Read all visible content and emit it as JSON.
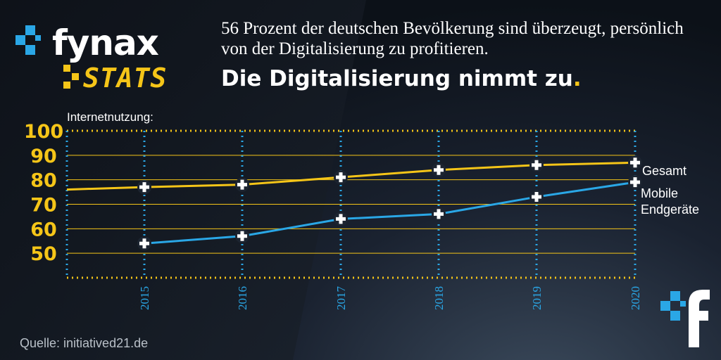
{
  "brand": {
    "logo_text": "fynax",
    "logo_sub": "STATS"
  },
  "header": {
    "subtitle": "56 Prozent der deutschen Bevölkerung sind überzeugt, persönlich von der Digitalisierung zu profitieren.",
    "title": "Die Digitalisierung nimmt zu",
    "title_dot": "."
  },
  "source": "Quelle: initiatived21.de",
  "colors": {
    "accent_yellow": "#f5c518",
    "accent_blue": "#2aa7e6"
  },
  "chart_data": {
    "type": "line",
    "title": "",
    "ylabel": "Internetnutzung:",
    "xlabel": "",
    "x": [
      "2015",
      "2016",
      "2017",
      "2018",
      "2019",
      "2020"
    ],
    "ylim": [
      40,
      100
    ],
    "yticks": [
      50,
      60,
      70,
      80,
      90,
      100
    ],
    "grid": true,
    "series": [
      {
        "name": "Gesamt",
        "color": "#f5c518",
        "values": [
          77,
          78,
          81,
          84,
          86,
          87
        ],
        "start_value": 76
      },
      {
        "name": "Mobile Endgeräte",
        "color": "#2aa7e6",
        "values": [
          54,
          57,
          64,
          66,
          73,
          79
        ]
      }
    ]
  }
}
